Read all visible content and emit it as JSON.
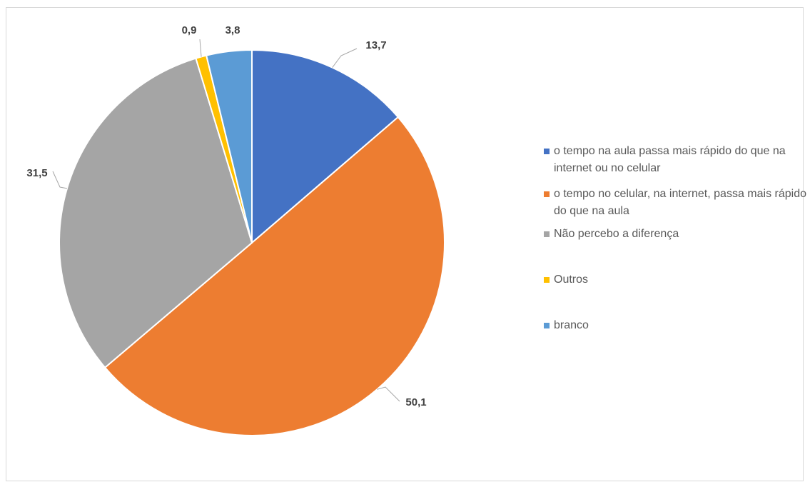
{
  "chart_data": {
    "type": "pie",
    "title": "",
    "slices": [
      {
        "label": "o tempo na aula passa mais rápido do que na internet ou no celular",
        "value": 13.7,
        "value_label": "13,7",
        "color": "#4472C4"
      },
      {
        "label": "o tempo no celular, na internet, passa mais rápido do que na aula",
        "value": 50.1,
        "value_label": "50,1",
        "color": "#ED7D31"
      },
      {
        "label": "Não percebo a diferença",
        "value": 31.5,
        "value_label": "31,5",
        "color": "#A5A5A5"
      },
      {
        "label": "Outros",
        "value": 0.9,
        "value_label": "0,9",
        "color": "#FFC000"
      },
      {
        "label": "branco",
        "value": 3.8,
        "value_label": "3,8",
        "color": "#5B9BD5"
      }
    ],
    "legend_position": "right",
    "data_labels": "outside with leader lines"
  }
}
